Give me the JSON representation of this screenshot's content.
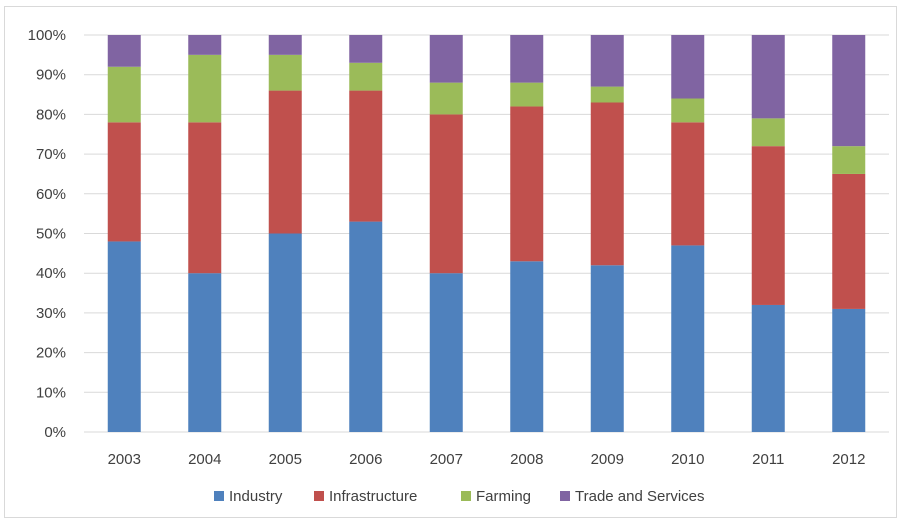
{
  "chart_data": {
    "type": "bar",
    "stacked": true,
    "categories": [
      "2003",
      "2004",
      "2005",
      "2006",
      "2007",
      "2008",
      "2009",
      "2010",
      "2011",
      "2012"
    ],
    "series": [
      {
        "name": "Industry",
        "color": "#4f81bd",
        "values": [
          48,
          40,
          50,
          53,
          40,
          43,
          42,
          47,
          32,
          31
        ]
      },
      {
        "name": "Infrastructure",
        "color": "#c0504d",
        "values": [
          30,
          38,
          36,
          33,
          40,
          39,
          41,
          31,
          40,
          34
        ]
      },
      {
        "name": "Farming",
        "color": "#9bbb59",
        "values": [
          14,
          17,
          9,
          7,
          8,
          6,
          4,
          6,
          7,
          7
        ]
      },
      {
        "name": "Trade and Services",
        "color": "#8064a2",
        "values": [
          8,
          5,
          5,
          7,
          12,
          12,
          13,
          16,
          21,
          28
        ]
      }
    ],
    "ylim": [
      0,
      100
    ],
    "yticks": [
      "0%",
      "10%",
      "20%",
      "30%",
      "40%",
      "50%",
      "60%",
      "70%",
      "80%",
      "90%",
      "100%"
    ],
    "grid": true,
    "legend_position": "bottom"
  }
}
